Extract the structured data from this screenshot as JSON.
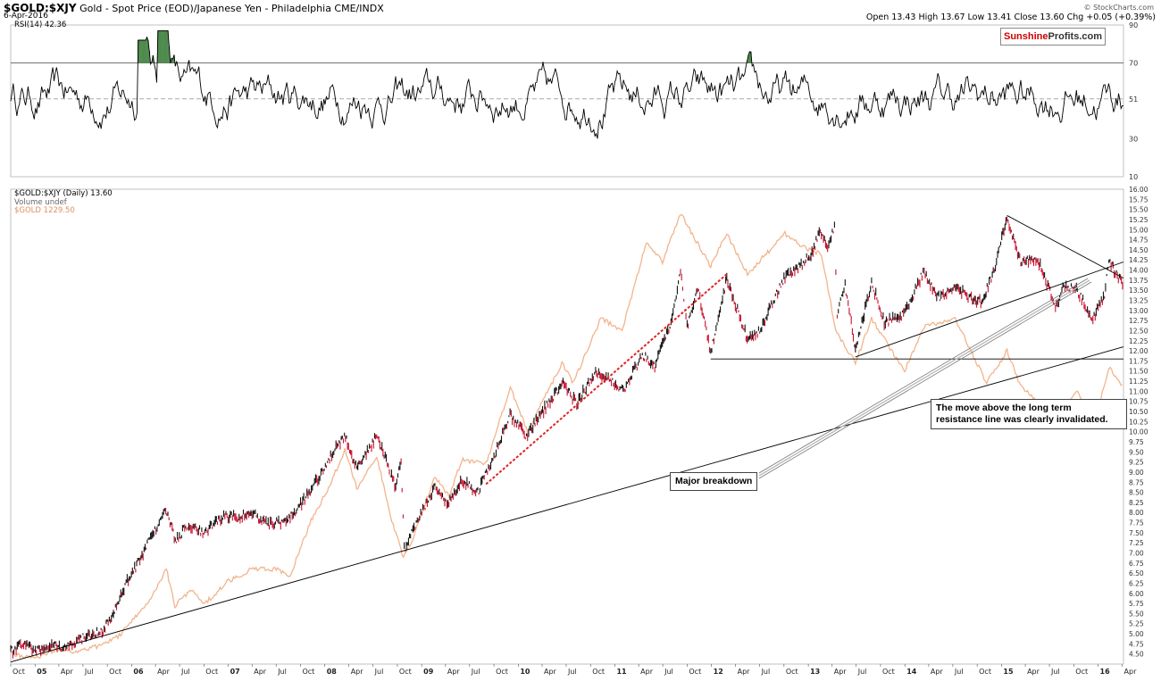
{
  "header": {
    "symbol": "$GOLD:$XJY",
    "description": "Gold - Spot Price (EOD)/Japanese Yen - Philadelphia CME/INDX",
    "date": "6-Apr-2016",
    "ohlc": "Open 13.43  High 13.67  Low 13.41  Close 13.60  Chg +0.05 (+0.39%)",
    "credit": "© StockCharts.com"
  },
  "badge": {
    "part1": "Sunshine",
    "part2": "Profits.com"
  },
  "rsi_panel": {
    "label": "RSI(14) 42.36",
    "ticks": [
      "90",
      "70",
      "51",
      "30",
      "10"
    ]
  },
  "price_panel": {
    "legend_main": "$GOLD:$XJY (Daily) 13.60",
    "legend_volume": "Volume undef",
    "legend_second": "$GOLD 1229.50"
  },
  "annotations": {
    "note": [
      "The move above the long term",
      "resistance line was clearly invalidated."
    ],
    "breakdown": "Major breakdown"
  },
  "colors": {
    "price": "#111111",
    "price_down": "#c8102e",
    "gold_usd": "#f2b48c",
    "rsi": "#000000",
    "rsi_overbought_fill": "#4e8a4e",
    "trend_red": "#e32222",
    "badge_red": "#d10000"
  },
  "chart_data": {
    "type": "line",
    "x_range": [
      "2004-10-01",
      "2016-04-06"
    ],
    "x_ticks": [
      {
        "date": "2004-10-01",
        "label": "Oct"
      },
      {
        "date": "2005-01-01",
        "label": "05"
      },
      {
        "date": "2005-04-01",
        "label": "Apr"
      },
      {
        "date": "2005-07-01",
        "label": "Jul"
      },
      {
        "date": "2005-10-01",
        "label": "Oct"
      },
      {
        "date": "2006-01-01",
        "label": "06"
      },
      {
        "date": "2006-04-01",
        "label": "Apr"
      },
      {
        "date": "2006-07-01",
        "label": "Jul"
      },
      {
        "date": "2006-10-01",
        "label": "Oct"
      },
      {
        "date": "2007-01-01",
        "label": "07"
      },
      {
        "date": "2007-04-01",
        "label": "Apr"
      },
      {
        "date": "2007-07-01",
        "label": "Jul"
      },
      {
        "date": "2007-10-01",
        "label": "Oct"
      },
      {
        "date": "2008-01-01",
        "label": "08"
      },
      {
        "date": "2008-04-01",
        "label": "Apr"
      },
      {
        "date": "2008-07-01",
        "label": "Jul"
      },
      {
        "date": "2008-10-01",
        "label": "Oct"
      },
      {
        "date": "2009-01-01",
        "label": "09"
      },
      {
        "date": "2009-04-01",
        "label": "Apr"
      },
      {
        "date": "2009-07-01",
        "label": "Jul"
      },
      {
        "date": "2009-10-01",
        "label": "Oct"
      },
      {
        "date": "2010-01-01",
        "label": "10"
      },
      {
        "date": "2010-04-01",
        "label": "Apr"
      },
      {
        "date": "2010-07-01",
        "label": "Jul"
      },
      {
        "date": "2010-10-01",
        "label": "Oct"
      },
      {
        "date": "2011-01-01",
        "label": "11"
      },
      {
        "date": "2011-04-01",
        "label": "Apr"
      },
      {
        "date": "2011-07-01",
        "label": "Jul"
      },
      {
        "date": "2011-10-01",
        "label": "Oct"
      },
      {
        "date": "2012-01-01",
        "label": "12"
      },
      {
        "date": "2012-04-01",
        "label": "Apr"
      },
      {
        "date": "2012-07-01",
        "label": "Jul"
      },
      {
        "date": "2012-10-01",
        "label": "Oct"
      },
      {
        "date": "2013-01-01",
        "label": "13"
      },
      {
        "date": "2013-04-01",
        "label": "Apr"
      },
      {
        "date": "2013-07-01",
        "label": "Jul"
      },
      {
        "date": "2013-10-01",
        "label": "Oct"
      },
      {
        "date": "2014-01-01",
        "label": "14"
      },
      {
        "date": "2014-04-01",
        "label": "Apr"
      },
      {
        "date": "2014-07-01",
        "label": "Jul"
      },
      {
        "date": "2014-10-01",
        "label": "Oct"
      },
      {
        "date": "2015-01-01",
        "label": "15"
      },
      {
        "date": "2015-04-01",
        "label": "Apr"
      },
      {
        "date": "2015-07-01",
        "label": "Jul"
      },
      {
        "date": "2015-10-01",
        "label": "Oct"
      },
      {
        "date": "2016-01-01",
        "label": "16"
      },
      {
        "date": "2016-04-01",
        "label": "Apr"
      }
    ],
    "y_range": [
      4.25,
      16.0
    ],
    "y_ticks": [
      4.5,
      4.75,
      5.0,
      5.25,
      5.5,
      5.75,
      6.0,
      6.25,
      6.5,
      6.75,
      7.0,
      7.25,
      7.5,
      7.75,
      8.0,
      8.25,
      8.5,
      8.75,
      9.0,
      9.25,
      9.5,
      9.75,
      10.0,
      10.25,
      10.5,
      10.75,
      11.0,
      11.25,
      11.5,
      11.75,
      12.0,
      12.25,
      12.5,
      12.75,
      13.0,
      13.25,
      13.5,
      13.75,
      14.0,
      14.25,
      14.5,
      14.75,
      15.0,
      15.25,
      15.5,
      15.75,
      16.0
    ],
    "series": [
      {
        "name": "$GOLD:$XJY",
        "points": [
          [
            "2004-10-01",
            4.55
          ],
          [
            "2004-11-15",
            4.75
          ],
          [
            "2005-01-10",
            4.6
          ],
          [
            "2005-03-01",
            4.75
          ],
          [
            "2005-05-01",
            4.65
          ],
          [
            "2005-07-01",
            4.9
          ],
          [
            "2005-08-15",
            5.0
          ],
          [
            "2005-09-15",
            5.1
          ],
          [
            "2005-11-01",
            5.6
          ],
          [
            "2005-12-15",
            6.3
          ],
          [
            "2006-01-20",
            6.7
          ],
          [
            "2006-03-01",
            7.2
          ],
          [
            "2006-05-10",
            8.1
          ],
          [
            "2006-06-15",
            7.3
          ],
          [
            "2006-08-01",
            7.7
          ],
          [
            "2006-10-01",
            7.5
          ],
          [
            "2006-12-15",
            7.9
          ],
          [
            "2007-02-15",
            7.9
          ],
          [
            "2007-04-01",
            8.0
          ],
          [
            "2007-06-01",
            7.7
          ],
          [
            "2007-08-15",
            7.8
          ],
          [
            "2007-10-01",
            8.2
          ],
          [
            "2007-11-15",
            8.6
          ],
          [
            "2008-01-15",
            9.3
          ],
          [
            "2008-03-15",
            9.9
          ],
          [
            "2008-05-01",
            9.1
          ],
          [
            "2008-07-15",
            9.9
          ],
          [
            "2008-08-20",
            9.3
          ],
          [
            "2008-09-25",
            8.6
          ],
          [
            "2008-10-15",
            9.3
          ],
          [
            "2008-10-27",
            7.1
          ],
          [
            "2008-11-20",
            7.4
          ],
          [
            "2008-12-20",
            7.9
          ],
          [
            "2009-02-20",
            8.6
          ],
          [
            "2009-04-10",
            8.2
          ],
          [
            "2009-06-01",
            8.8
          ],
          [
            "2009-08-01",
            8.5
          ],
          [
            "2009-10-01",
            9.4
          ],
          [
            "2009-12-01",
            10.4
          ],
          [
            "2010-02-01",
            9.9
          ],
          [
            "2010-04-15",
            10.6
          ],
          [
            "2010-06-15",
            11.2
          ],
          [
            "2010-08-10",
            10.7
          ],
          [
            "2010-10-20",
            11.5
          ],
          [
            "2010-12-15",
            11.3
          ],
          [
            "2011-02-01",
            11.0
          ],
          [
            "2011-04-15",
            11.9
          ],
          [
            "2011-06-01",
            11.6
          ],
          [
            "2011-08-01",
            12.7
          ],
          [
            "2011-09-06",
            14.0
          ],
          [
            "2011-10-01",
            12.6
          ],
          [
            "2011-11-10",
            13.6
          ],
          [
            "2011-12-29",
            11.95
          ],
          [
            "2012-02-28",
            13.8
          ],
          [
            "2012-05-15",
            12.3
          ],
          [
            "2012-07-01",
            12.5
          ],
          [
            "2012-10-01",
            13.8
          ],
          [
            "2012-12-01",
            14.1
          ],
          [
            "2013-01-15",
            14.4
          ],
          [
            "2013-02-15",
            15.0
          ],
          [
            "2013-03-15",
            14.6
          ],
          [
            "2013-04-10",
            15.1
          ],
          [
            "2013-04-20",
            12.9
          ],
          [
            "2013-05-20",
            13.6
          ],
          [
            "2013-06-28",
            12.05
          ],
          [
            "2013-08-28",
            13.7
          ],
          [
            "2013-10-15",
            12.7
          ],
          [
            "2013-12-31",
            12.9
          ],
          [
            "2014-03-15",
            14.0
          ],
          [
            "2014-05-01",
            13.3
          ],
          [
            "2014-07-10",
            13.6
          ],
          [
            "2014-09-01",
            13.3
          ],
          [
            "2014-10-15",
            13.2
          ],
          [
            "2014-12-01",
            13.9
          ],
          [
            "2015-01-22",
            15.3
          ],
          [
            "2015-03-15",
            14.2
          ],
          [
            "2015-05-15",
            14.3
          ],
          [
            "2015-07-24",
            13.1
          ],
          [
            "2015-08-25",
            13.6
          ],
          [
            "2015-10-15",
            13.5
          ],
          [
            "2015-11-30",
            12.9
          ],
          [
            "2015-12-17",
            12.85
          ],
          [
            "2016-01-25",
            13.4
          ],
          [
            "2016-02-11",
            14.2
          ],
          [
            "2016-03-10",
            13.9
          ],
          [
            "2016-04-06",
            13.6
          ]
        ]
      },
      {
        "name": "$GOLD",
        "points": [
          [
            "2004-10-01",
            4.5
          ],
          [
            "2005-01-10",
            4.4
          ],
          [
            "2005-03-15",
            4.6
          ],
          [
            "2005-06-01",
            4.55
          ],
          [
            "2005-09-01",
            4.7
          ],
          [
            "2005-11-15",
            4.95
          ],
          [
            "2006-01-15",
            5.4
          ],
          [
            "2006-03-15",
            5.9
          ],
          [
            "2006-05-12",
            6.6
          ],
          [
            "2006-06-14",
            5.7
          ],
          [
            "2006-08-15",
            6.1
          ],
          [
            "2006-10-05",
            5.75
          ],
          [
            "2007-01-01",
            6.3
          ],
          [
            "2007-04-01",
            6.6
          ],
          [
            "2007-07-01",
            6.6
          ],
          [
            "2007-08-20",
            6.4
          ],
          [
            "2007-11-10",
            7.8
          ],
          [
            "2008-01-15",
            8.6
          ],
          [
            "2008-03-17",
            9.55
          ],
          [
            "2008-05-01",
            8.6
          ],
          [
            "2008-07-15",
            9.4
          ],
          [
            "2008-09-10",
            7.8
          ],
          [
            "2008-10-24",
            6.9
          ],
          [
            "2008-12-01",
            7.4
          ],
          [
            "2009-02-20",
            8.9
          ],
          [
            "2009-04-15",
            8.4
          ],
          [
            "2009-06-01",
            9.3
          ],
          [
            "2009-09-01",
            9.2
          ],
          [
            "2009-12-02",
            11.1
          ],
          [
            "2010-02-05",
            10.0
          ],
          [
            "2010-06-15",
            11.7
          ],
          [
            "2010-07-28",
            11.2
          ],
          [
            "2010-11-09",
            12.8
          ],
          [
            "2011-01-28",
            12.5
          ],
          [
            "2011-05-01",
            14.7
          ],
          [
            "2011-06-30",
            14.2
          ],
          [
            "2011-09-06",
            15.4
          ],
          [
            "2011-12-29",
            14.1
          ],
          [
            "2012-02-28",
            14.9
          ],
          [
            "2012-05-16",
            13.9
          ],
          [
            "2012-10-05",
            14.9
          ],
          [
            "2012-12-31",
            14.5
          ],
          [
            "2013-02-20",
            14.4
          ],
          [
            "2013-04-15",
            12.5
          ],
          [
            "2013-06-28",
            11.7
          ],
          [
            "2013-08-28",
            12.8
          ],
          [
            "2013-12-31",
            11.5
          ],
          [
            "2014-03-15",
            12.6
          ],
          [
            "2014-07-10",
            12.8
          ],
          [
            "2014-11-06",
            11.2
          ],
          [
            "2015-01-22",
            12.0
          ],
          [
            "2015-03-15",
            11.1
          ],
          [
            "2015-07-24",
            10.4
          ],
          [
            "2015-10-15",
            11.0
          ],
          [
            "2015-12-17",
            10.2
          ],
          [
            "2016-02-11",
            11.6
          ],
          [
            "2016-04-06",
            11.1
          ]
        ]
      }
    ],
    "rsi": {
      "label": "RSI(14)",
      "value": 42.36,
      "y_range": [
        10,
        90
      ],
      "ticks": [
        10,
        30,
        51,
        70,
        90
      ],
      "overbought": 70,
      "oversold": 30
    },
    "trendlines": [
      {
        "id": "long-term-support",
        "from": [
          "2004-10-01",
          4.3
        ],
        "to": [
          "2016-04-06",
          12.1
        ],
        "color": "#000000"
      },
      {
        "id": "horizontal-support",
        "from": [
          "2011-12-29",
          11.8
        ],
        "to": [
          "2016-04-06",
          11.8
        ],
        "color": "#000000"
      },
      {
        "id": "rising-support",
        "from": [
          "2013-06-28",
          11.85
        ],
        "to": [
          "2016-04-06",
          14.2
        ],
        "color": "#000000"
      },
      {
        "id": "falling-resistance",
        "from": [
          "2015-01-22",
          15.35
        ],
        "to": [
          "2016-04-06",
          13.8
        ],
        "color": "#000000"
      },
      {
        "id": "red-trend",
        "from": [
          "2009-09-01",
          8.7
        ],
        "to": [
          "2012-02-28",
          13.9
        ],
        "color": "#e32222",
        "dashed": true
      }
    ]
  }
}
